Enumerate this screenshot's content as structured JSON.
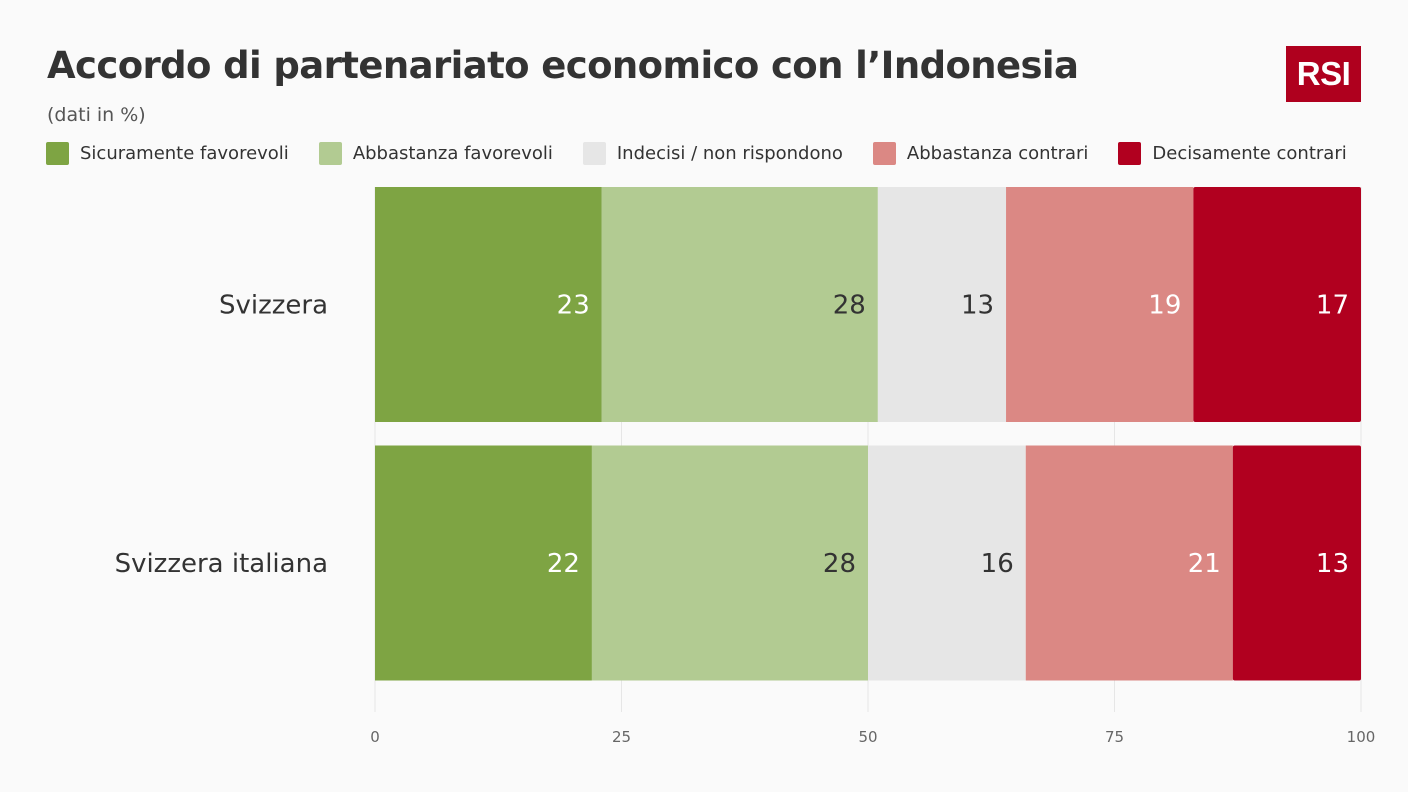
{
  "header": {
    "title": "Accordo di partenariato economico con l’Indonesia",
    "subtitle": "(dati in %)",
    "logo_text": "RSI"
  },
  "colors": {
    "logo": "#af001e",
    "gridline": "#e6e6e6",
    "axis_tick_text": "#666666",
    "category_text": "#333333"
  },
  "legend": [
    {
      "label": "Sicuramente favorevoli",
      "color": "#7ea443"
    },
    {
      "label": "Abbastanza favorevoli",
      "color": "#b2cb92"
    },
    {
      "label": "Indecisi / non rispondono",
      "color": "#e6e6e6"
    },
    {
      "label": "Abbastanza contrari",
      "color": "#db8884"
    },
    {
      "label": "Decisamente contrari",
      "color": "#b1001f"
    }
  ],
  "chart_data": {
    "type": "bar",
    "orientation": "horizontal",
    "stacked": true,
    "title": "Accordo di partenariato economico con l’Indonesia",
    "subtitle": "(dati in %)",
    "categories": [
      "Svizzera",
      "Svizzera italiana"
    ],
    "series": [
      {
        "name": "Sicuramente favorevoli",
        "values": [
          23,
          22
        ],
        "color": "#7ea443",
        "label_color": "#ffffff"
      },
      {
        "name": "Abbastanza favorevoli",
        "values": [
          28,
          28
        ],
        "color": "#b2cb92",
        "label_color": "#333333"
      },
      {
        "name": "Indecisi / non rispondono",
        "values": [
          13,
          16
        ],
        "color": "#e6e6e6",
        "label_color": "#333333"
      },
      {
        "name": "Abbastanza contrari",
        "values": [
          19,
          21
        ],
        "color": "#db8884",
        "label_color": "#ffffff"
      },
      {
        "name": "Decisamente contrari",
        "values": [
          17,
          13
        ],
        "color": "#b1001f",
        "label_color": "#ffffff"
      }
    ],
    "xlim": [
      0,
      100
    ],
    "xticks": [
      0,
      25,
      50,
      75,
      100
    ],
    "grid": true,
    "legend_position": "top"
  }
}
